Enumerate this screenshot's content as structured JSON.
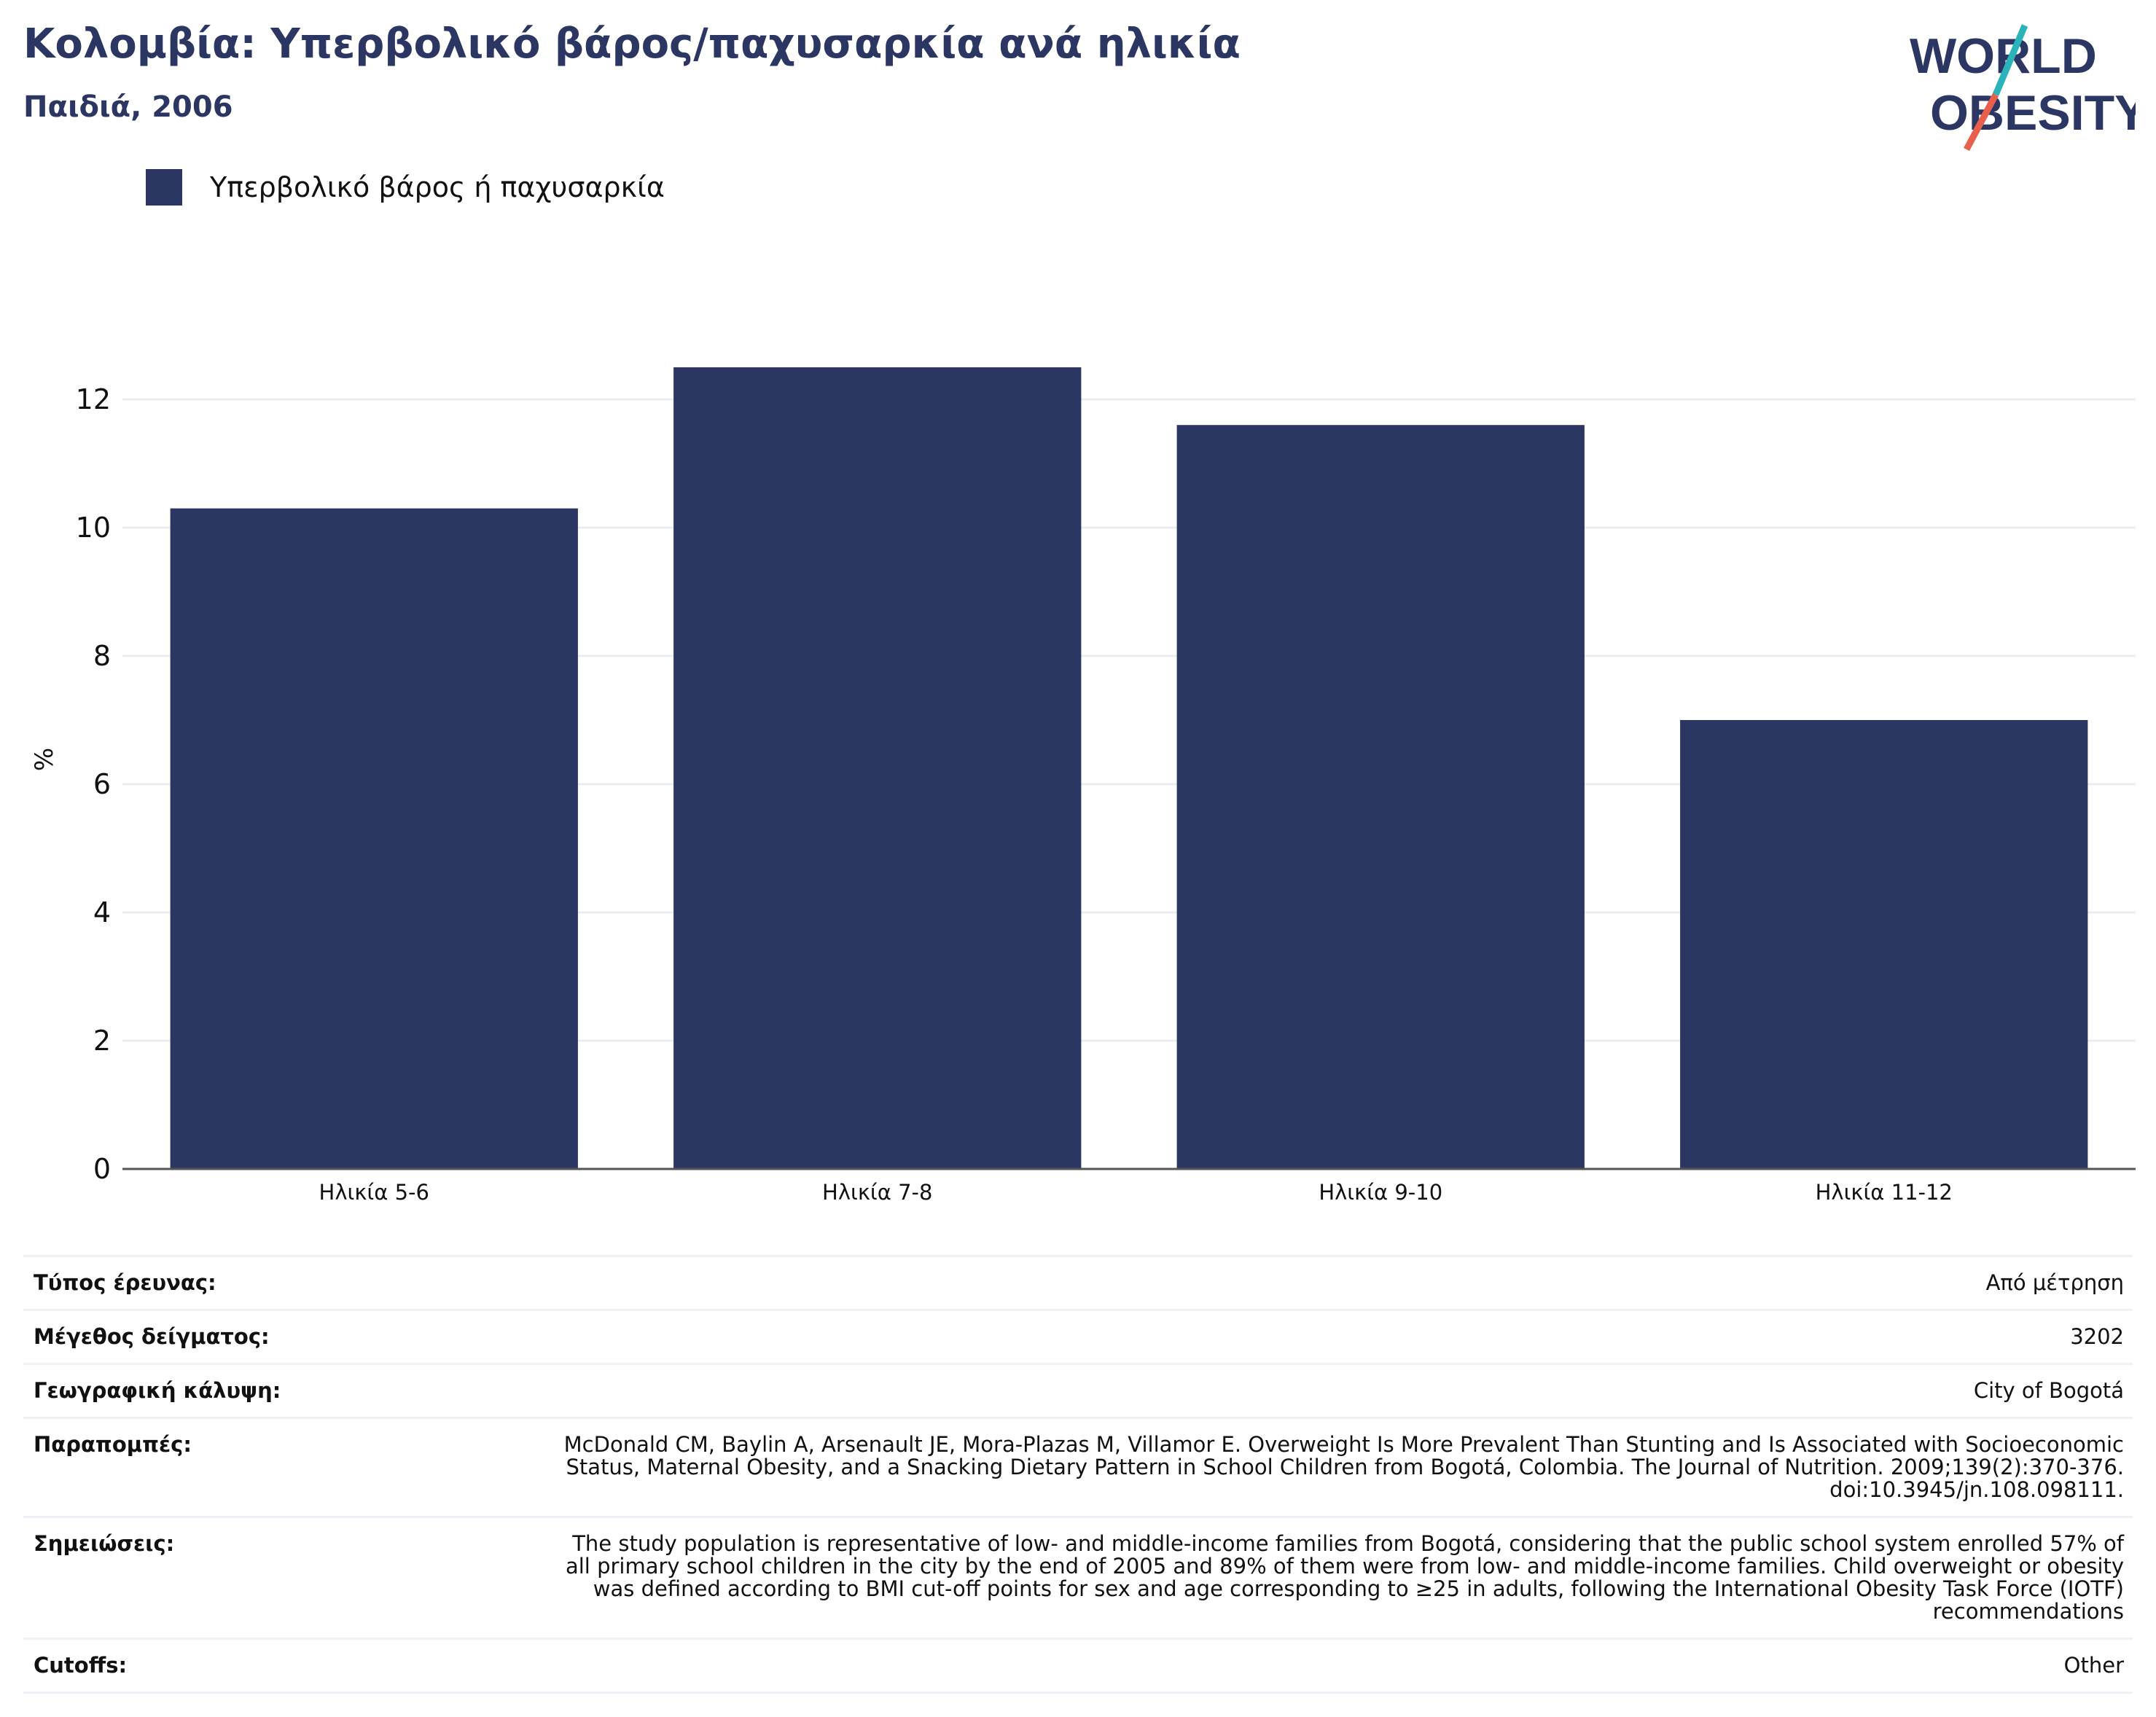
{
  "header": {
    "title": "Κολομβία: Υπερβολικό βάρος/παχυσαρκία ανά ηλικία",
    "subtitle": "Παιδιά, 2006"
  },
  "logo": {
    "line1": "WORLD",
    "line2": "OBESITY",
    "colors": {
      "text": "#2b3663",
      "slash_top": "#2ab3b8",
      "slash_bottom": "#e8604c"
    }
  },
  "colors": {
    "bar": "#2b3663",
    "grid": "#e9edf2",
    "axis": "#555555"
  },
  "chart_data": {
    "type": "bar",
    "categories": [
      "Ηλικία 5-6",
      "Ηλικία 7-8",
      "Ηλικία 9-10",
      "Ηλικία 11-12"
    ],
    "series": [
      {
        "name": "Υπερβολικό βάρος ή παχυσαρκία",
        "values": [
          10.3,
          12.5,
          11.6,
          7.0
        ]
      }
    ],
    "ylabel": "%",
    "ylim": [
      0,
      13
    ],
    "yticks": [
      0,
      2,
      4,
      6,
      8,
      10,
      12
    ],
    "grid": true,
    "legend_position": "top-left"
  },
  "info": [
    {
      "key": "Τύπος έρευνας:",
      "value": "Από μέτρηση"
    },
    {
      "key": "Μέγεθος δείγματος:",
      "value": "3202"
    },
    {
      "key": "Γεωγραφική κάλυψη:",
      "value": "City of Bogotá"
    },
    {
      "key": "Παραπομπές:",
      "value": "McDonald CM, Baylin A, Arsenault JE, Mora-Plazas M, Villamor E. Overweight Is More Prevalent Than Stunting and Is Associated with Socioeconomic Status, Maternal Obesity, and a Snacking Dietary Pattern in School Children from Bogotá, Colombia. The Journal of Nutrition. 2009;139(2):370-376. doi:10.3945/jn.108.098111."
    },
    {
      "key": "Σημειώσεις:",
      "value": "The study population is representative of low- and middle-income families from Bogotá, considering that the public school system enrolled 57% of all primary school children in the city by the end of 2005 and 89% of them were from low- and middle-income families. Child overweight or obesity was defined according to BMI cut-off points for sex and age corresponding to ≥25 in adults, following the International Obesity Task Force (IOTF) recommendations"
    },
    {
      "key": "Cutoffs:",
      "value": "Other"
    }
  ]
}
